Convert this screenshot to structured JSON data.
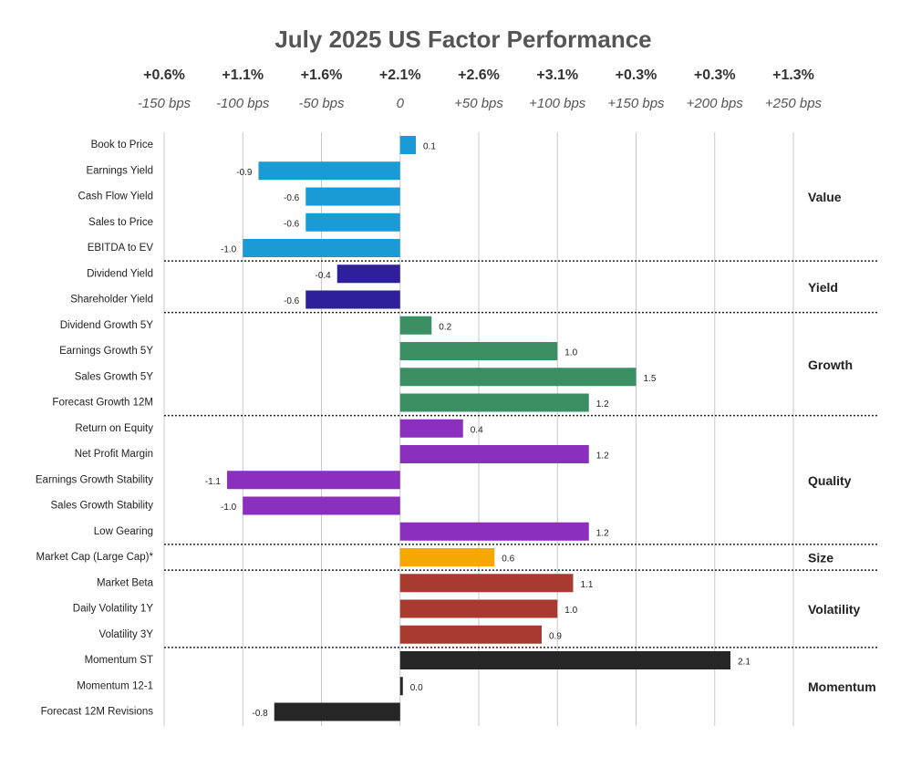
{
  "chart_data": {
    "type": "bar",
    "orientation": "horizontal",
    "title": "July 2025 US Factor Performance",
    "header_labels": [
      "+0.6%",
      "+1.1%",
      "+1.6%",
      "+2.1%",
      "+2.6%",
      "+3.1%",
      "+0.3%",
      "+0.3%",
      "+1.3%"
    ],
    "xlim": [
      -1.5,
      2.5
    ],
    "xticks": [
      {
        "value": -1.5,
        "label": "-150 bps"
      },
      {
        "value": -1,
        "label": "-100 bps"
      },
      {
        "value": -0.5,
        "label": "-50 bps"
      },
      0,
      {
        "value": 0.5,
        "label": "+50 bps"
      },
      {
        "value": 1,
        "label": "+100 bps"
      },
      {
        "value": 1.5,
        "label": "+150 bps"
      },
      {
        "value": 2,
        "label": "+200 bps"
      },
      {
        "value": 2.5,
        "label": "+250 bps"
      }
    ],
    "grid": true,
    "series": [
      {
        "name": "Value",
        "color": "#1a9bd6",
        "categories": [
          "Book to Price",
          "Earnings Yield",
          "Cash Flow Yield",
          "Sales to Price",
          "EBITDA to EV"
        ],
        "values": [
          0.1,
          -0.9,
          -0.6,
          -0.6,
          -1.0
        ],
        "value_labels": [
          "0.1",
          "-0.9",
          "-0.6",
          "-0.6",
          "-1.0"
        ]
      },
      {
        "name": "Yield",
        "color": "#2e1f9a",
        "categories": [
          "Dividend Yield",
          "Shareholder Yield"
        ],
        "values": [
          -0.4,
          -0.6
        ],
        "value_labels": [
          "-0.4",
          "-0.6"
        ]
      },
      {
        "name": "Growth",
        "color": "#3a8f63",
        "categories": [
          "Dividend Growth 5Y",
          "Earnings Growth 5Y",
          "Sales Growth 5Y",
          "Forecast Growth 12M"
        ],
        "values": [
          0.2,
          1.0,
          1.5,
          1.2
        ],
        "value_labels": [
          "0.2",
          "1.0",
          "1.5",
          "1.2"
        ]
      },
      {
        "name": "Quality",
        "color": "#8a2fbe",
        "categories": [
          "Return on Equity",
          "Net Profit Margin",
          "Earnings Growth Stability",
          "Sales Growth Stability",
          "Low Gearing"
        ],
        "values": [
          0.4,
          1.2,
          -1.1,
          -1.0,
          1.2
        ],
        "value_labels": [
          "0.4",
          "1.2",
          "-1.1",
          "-1.0",
          "1.2"
        ]
      },
      {
        "name": "Size",
        "color": "#f5a800",
        "categories": [
          "Market Cap (Large Cap)*"
        ],
        "values": [
          0.6
        ],
        "value_labels": [
          "0.6"
        ]
      },
      {
        "name": "Volatility",
        "color": "#a83a30",
        "categories": [
          "Market Beta",
          "Daily Volatility 1Y",
          "Volatility 3Y"
        ],
        "values": [
          1.1,
          1.0,
          0.9
        ],
        "value_labels": [
          "1.1",
          "1.0",
          "0.9"
        ]
      },
      {
        "name": "Momentum",
        "color": "#262626",
        "categories": [
          "Momentum ST",
          "Momentum 12-1",
          "Forecast 12M Revisions"
        ],
        "values": [
          2.1,
          0.0,
          -0.8
        ],
        "value_labels": [
          "2.1",
          "0.0",
          "-0.8"
        ]
      }
    ]
  }
}
